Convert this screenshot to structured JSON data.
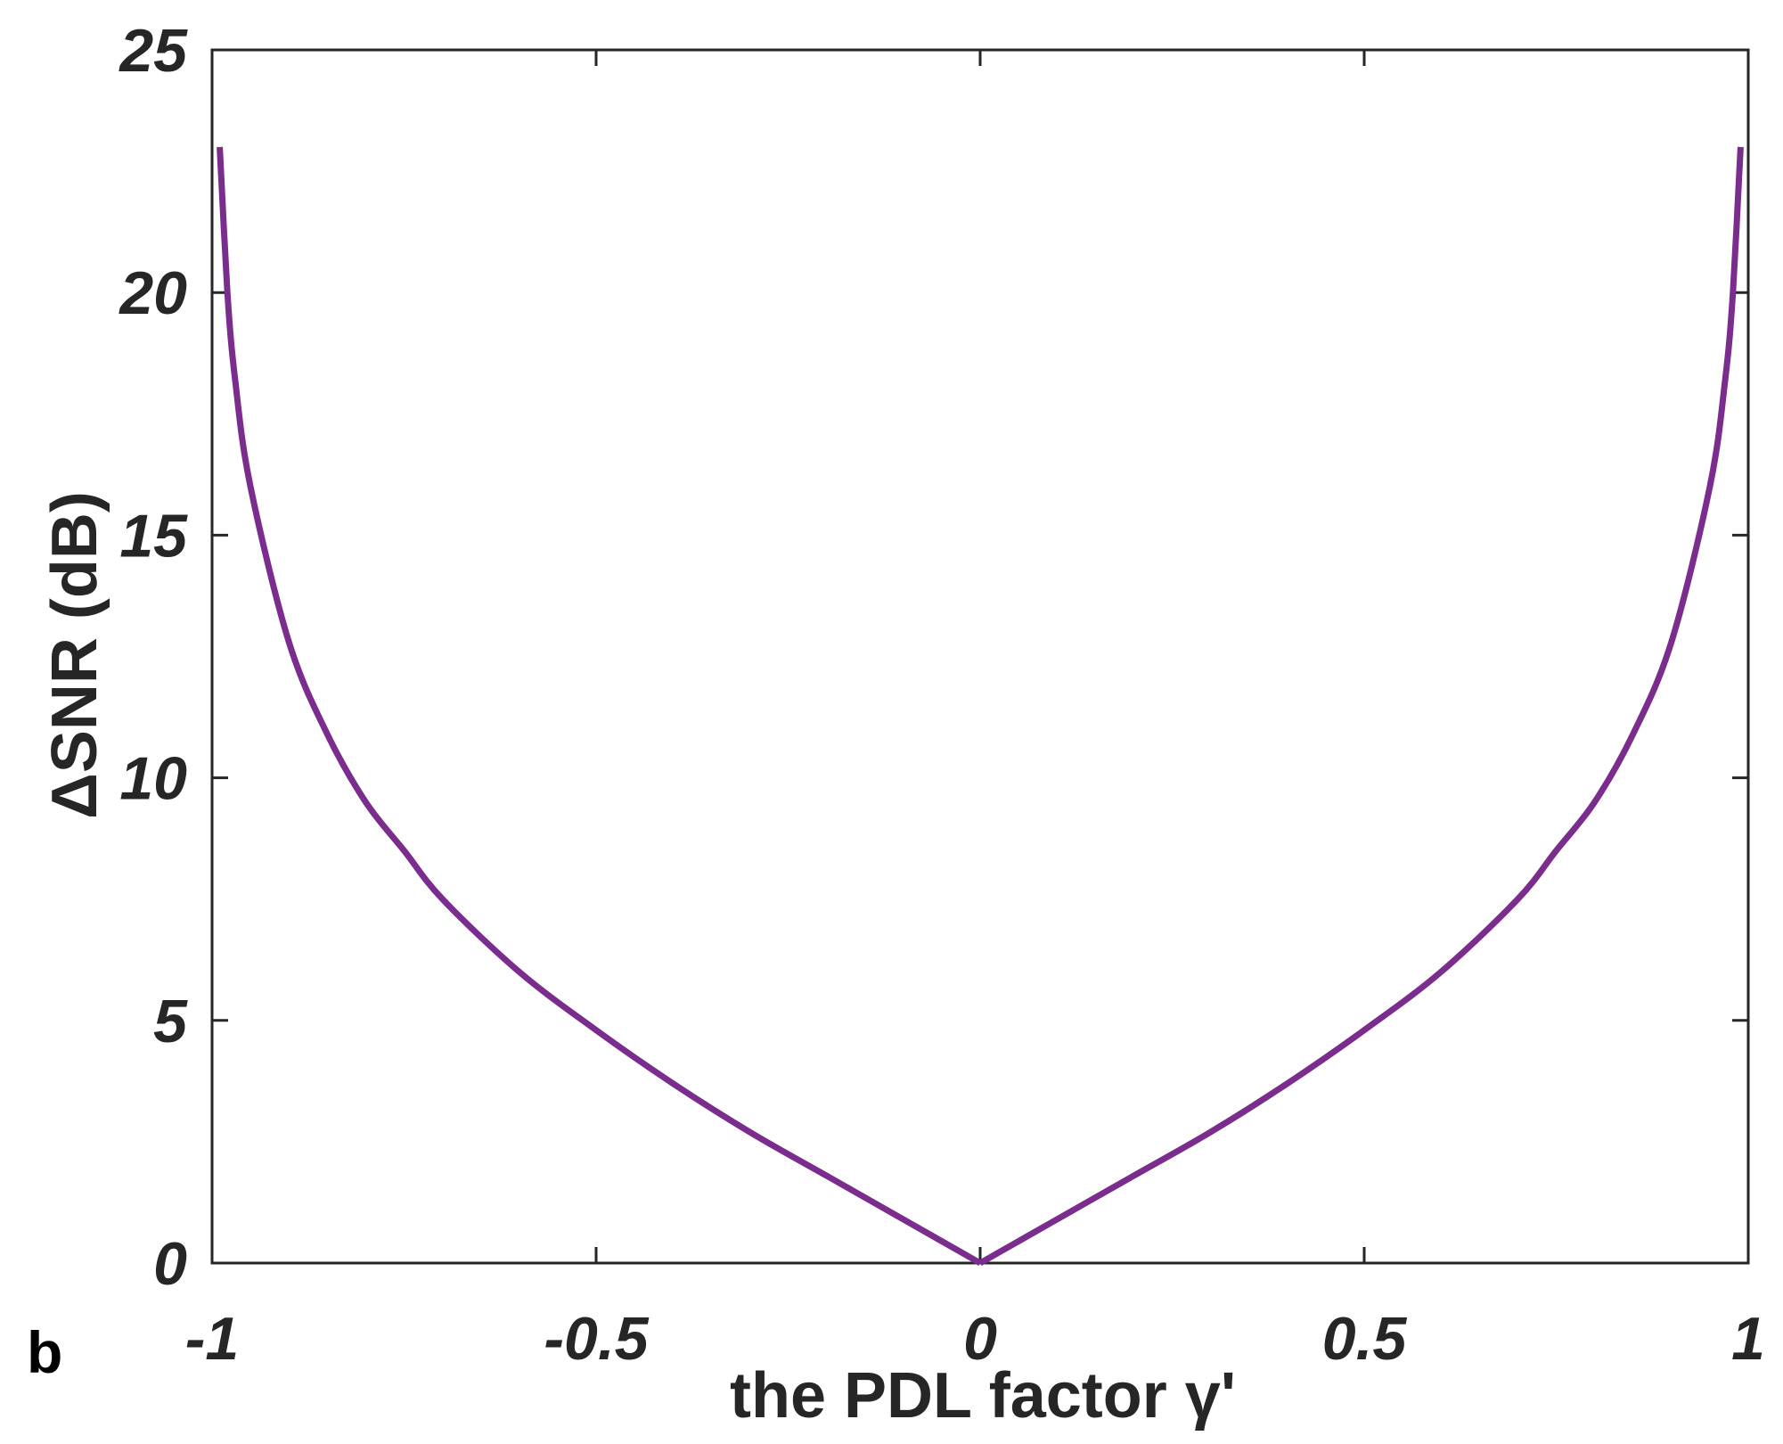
{
  "panel_label": "b",
  "chart_data": {
    "type": "line",
    "xlabel": "the PDL factor γ'",
    "ylabel": "ΔSNR (dB)",
    "xlim": [
      -1,
      1
    ],
    "ylim": [
      0,
      25
    ],
    "x_ticks": [
      -1,
      -0.5,
      0,
      0.5,
      1
    ],
    "x_tick_labels": [
      "-1",
      "-0.5",
      "0",
      "0.5",
      "1"
    ],
    "y_ticks": [
      0,
      5,
      10,
      15,
      20,
      25
    ],
    "y_tick_labels": [
      "0",
      "5",
      "10",
      "15",
      "20",
      "25"
    ],
    "grid": false,
    "series": [
      {
        "color": "#7B2D8E",
        "x": [
          -0.99,
          -0.98,
          -0.97,
          -0.95,
          -0.9,
          -0.85,
          -0.8,
          -0.75,
          -0.7,
          -0.6,
          -0.5,
          -0.4,
          -0.3,
          -0.2,
          -0.1,
          0,
          0.1,
          0.2,
          0.3,
          0.4,
          0.5,
          0.6,
          0.7,
          0.75,
          0.8,
          0.85,
          0.9,
          0.95,
          0.97,
          0.98,
          0.99
        ],
        "y": [
          23.0,
          20.0,
          18.2,
          16.0,
          12.8,
          10.9,
          9.5,
          8.5,
          7.5,
          6.0,
          4.8,
          3.7,
          2.7,
          1.8,
          0.9,
          0.0,
          0.9,
          1.8,
          2.7,
          3.7,
          4.8,
          6.0,
          7.5,
          8.5,
          9.5,
          10.9,
          12.8,
          16.0,
          18.2,
          20.0,
          23.0
        ]
      }
    ]
  }
}
